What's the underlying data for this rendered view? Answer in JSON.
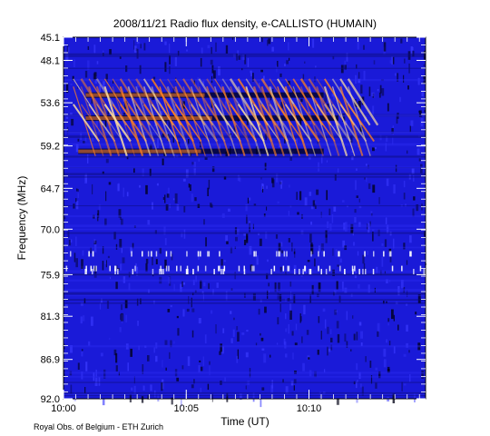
{
  "chart_data": {
    "type": "heatmap",
    "title": "2008/11/21  Radio flux density, e-CALLISTO (HUMAIN)",
    "xlabel": "Time (UT)",
    "ylabel": "Frequency (MHz)",
    "x_ticks": [
      "10:00",
      "10:05",
      "10:10"
    ],
    "x_tick_minutes": [
      0,
      5,
      10
    ],
    "xlim_minutes": [
      0,
      14.75
    ],
    "y_ticks": [
      "45.1",
      "48.1",
      "53.6",
      "59.2",
      "64.7",
      "70.0",
      "75.9",
      "81.3",
      "86.9",
      "92.0"
    ],
    "y_tick_mhz": [
      45.1,
      48.1,
      53.6,
      59.2,
      64.7,
      70.0,
      75.9,
      81.3,
      86.9,
      92.0
    ],
    "ylim_mhz": [
      45.1,
      92.0
    ],
    "y_inverted": true,
    "colors": {
      "background": "#1a1ad8",
      "hot": "#ff8020",
      "bright": "#ffe0a0",
      "dark": "#000010"
    },
    "features": {
      "type_iii_burst_group": {
        "start_min": 0.4,
        "end_min": 11.8,
        "drift_lanes_mhz": [
          [
            51.5,
            60.5
          ],
          [
            53.8,
            58.6
          ],
          [
            50.5,
            56.5
          ]
        ]
      },
      "hot_bands_mhz": [
        52.6,
        55.6,
        59.9
      ],
      "rfi_lines_mhz": [
        73.2,
        75.1,
        75.5
      ]
    }
  },
  "credit": "Royal Obs. of Belgium - ETH Zurich"
}
